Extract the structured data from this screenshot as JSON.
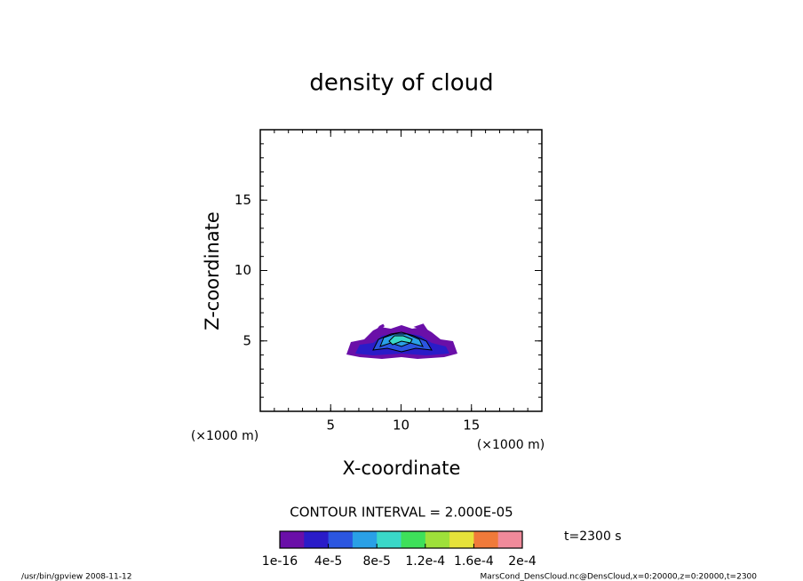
{
  "chart_data": {
    "type": "contour",
    "title": "density of cloud",
    "xlabel": "X-coordinate",
    "ylabel": "Z-coordinate",
    "xunit": "(×1000 m)",
    "yunit": "(×1000 m)",
    "xlim": [
      0,
      20
    ],
    "ylim": [
      0,
      20
    ],
    "xticks": [
      5,
      10,
      15
    ],
    "yticks": [
      5,
      10,
      15
    ],
    "minor_tick_step": 1,
    "contour_interval_label": "CONTOUR INTERVAL = 2.000E-05",
    "time_label": "t=2300 s",
    "colorbar": {
      "clim": [
        1e-16,
        0.0002
      ],
      "ticks": [
        {
          "value": 1e-16,
          "label": "1e-16"
        },
        {
          "value": 4e-05,
          "label": "4e-5"
        },
        {
          "value": 8e-05,
          "label": "8e-5"
        },
        {
          "value": 0.00012,
          "label": "1.2e-4"
        },
        {
          "value": 0.00016,
          "label": "1.6e-4"
        },
        {
          "value": 0.0002,
          "label": "2e-4"
        }
      ],
      "colors": [
        "#6a0fa8",
        "#2a1cc8",
        "#2b56e0",
        "#2aa0e6",
        "#3ad8c8",
        "#3ee05a",
        "#9ee03a",
        "#e6e23a",
        "#f07a3a",
        "#f08a9a"
      ]
    },
    "footer_left": "/usr/bin/gpview   2008-11-12",
    "footer_right": "MarsCond_DensCloud.nc@DensCloud,x=0:20000,z=0:20000,t=2300"
  }
}
